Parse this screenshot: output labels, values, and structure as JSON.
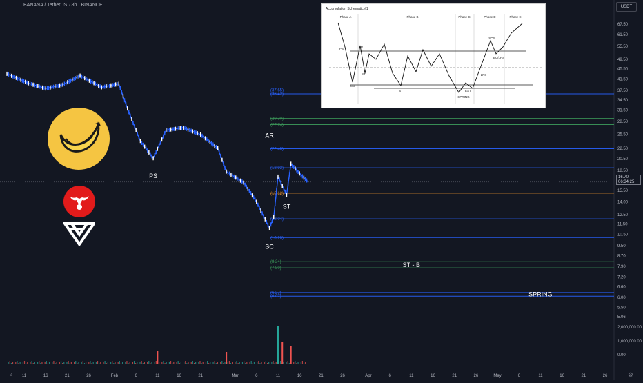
{
  "header": {
    "pair": "BANANA / TetherUS · 8h · BINANCE",
    "currency": "USDT"
  },
  "price_tag": {
    "price": "16.70",
    "countdown": "06:34:25"
  },
  "footer": {
    "timezone_label": "Z"
  },
  "colors": {
    "background": "#131722",
    "up": "#2962ff",
    "down": "#ffffff",
    "fib_blue": "#2962ff",
    "fib_green": "#3d9a5b",
    "fib_orange": "#e8912d",
    "vol_up": "#26a69a",
    "vol_down": "#ef5350"
  },
  "logos": {
    "banana": "banana-logo-icon",
    "bull": "bull-logo-icon",
    "w": "w-logo-icon"
  },
  "schematic": {
    "title": "Accumulation Schematic #1",
    "phases": [
      "Phase A",
      "Phase B",
      "Phase C",
      "Phase D",
      "Phase E"
    ],
    "labels": [
      "PS",
      "AR",
      "SC",
      "ST",
      "ST",
      "SPRING",
      "TEST",
      "LPS",
      "SOS",
      "BU/LPS"
    ]
  },
  "chart_data": {
    "type": "candlestick",
    "title": "BANANA / TetherUS · 8h · BINANCE",
    "y_axis_label": "USDT",
    "y_scale": "log",
    "y_ticks": [
      "67.50",
      "61.50",
      "55.50",
      "49.50",
      "45.50",
      "41.50",
      "37.50",
      "34.50",
      "31.50",
      "28.50",
      "25.50",
      "22.50",
      "20.50",
      "18.50",
      "16.50",
      "15.50",
      "14.00",
      "12.50",
      "11.50",
      "10.50",
      "9.50",
      "8.70",
      "7.90",
      "7.20",
      "6.60",
      "6.00",
      "5.50",
      "5.06"
    ],
    "volume_ticks": [
      "2,000,000.00",
      "1,000,000.00",
      "0.00"
    ],
    "x_ticks": [
      "11",
      "16",
      "21",
      "26",
      "Feb",
      "6",
      "11",
      "16",
      "21",
      "Mar",
      "6",
      "11",
      "16",
      "21",
      "26",
      "Apr",
      "6",
      "11",
      "16",
      "21",
      "26",
      "May",
      "6",
      "11",
      "16",
      "21",
      "26"
    ],
    "last_price": 16.7,
    "levels": [
      {
        "value": 37.65,
        "label": "(37.65)",
        "color": "blue"
      },
      {
        "value": 36.42,
        "label": "(36.42)",
        "color": "blue"
      },
      {
        "value": 29.3,
        "label": "(29.30)",
        "color": "green"
      },
      {
        "value": 27.74,
        "label": "(27.74)",
        "color": "green"
      },
      {
        "value": 22.4,
        "label": "(22.40)",
        "color": "blue"
      },
      {
        "value": 18.93,
        "label": "(18.93)",
        "color": "blue"
      },
      {
        "value": 15.12,
        "label": "(15.12)",
        "color": "orange"
      },
      {
        "value": 12.04,
        "label": "(12.04)",
        "color": "blue"
      },
      {
        "value": 10.2,
        "label": "(10.20)",
        "color": "blue"
      },
      {
        "value": 8.24,
        "label": "(8.24)",
        "color": "green"
      },
      {
        "value": 7.8,
        "label": "(7.80)",
        "color": "green"
      },
      {
        "value": 6.27,
        "label": "(6.27)",
        "color": "blue"
      },
      {
        "value": 6.07,
        "label": "(6.07)",
        "color": "blue"
      }
    ],
    "annotations": [
      {
        "text": "PS",
        "date": "Feb 10",
        "price": 17.6
      },
      {
        "text": "AR",
        "date": "Mar 9",
        "price": 25.2
      },
      {
        "text": "ST",
        "date": "Mar 13",
        "price": 13.4
      },
      {
        "text": "SC",
        "date": "Mar 9",
        "price": 9.4
      },
      {
        "text": "ST - B",
        "date": "Apr 11",
        "price": 8.0
      },
      {
        "text": "SPRING",
        "date": "May 11",
        "price": 6.17
      }
    ],
    "price_path": [
      {
        "date": "Jan 7",
        "price": 43.5
      },
      {
        "date": "Jan 12",
        "price": 40.0
      },
      {
        "date": "Jan 16",
        "price": 38.2
      },
      {
        "date": "Jan 20",
        "price": 39.5
      },
      {
        "date": "Jan 24",
        "price": 42.8
      },
      {
        "date": "Jan 29",
        "price": 38.6
      },
      {
        "date": "Feb 2",
        "price": 39.8
      },
      {
        "date": "Feb 4",
        "price": 32.0
      },
      {
        "date": "Feb 7",
        "price": 24.0
      },
      {
        "date": "Feb 10",
        "price": 20.6
      },
      {
        "date": "Feb 13",
        "price": 26.4
      },
      {
        "date": "Feb 17",
        "price": 27.0
      },
      {
        "date": "Feb 21",
        "price": 25.4
      },
      {
        "date": "Feb 25",
        "price": 22.5
      },
      {
        "date": "Feb 27",
        "price": 18.3
      },
      {
        "date": "Mar 3",
        "price": 16.6
      },
      {
        "date": "Mar 6",
        "price": 14.0
      },
      {
        "date": "Mar 9",
        "price": 11.1
      },
      {
        "date": "Mar 10",
        "price": 12.2
      },
      {
        "date": "Mar 11",
        "price": 17.5
      },
      {
        "date": "Mar 13",
        "price": 14.9
      },
      {
        "date": "Mar 14",
        "price": 19.6
      },
      {
        "date": "Mar 16",
        "price": 18.0
      },
      {
        "date": "Mar 18",
        "price": 16.7
      }
    ],
    "volume_path": [
      {
        "date": "Mar 11",
        "volume": 2100000
      },
      {
        "date": "Mar 12",
        "volume": 900000
      },
      {
        "date": "Mar 14",
        "volume": 600000
      },
      {
        "date": "Feb 11",
        "volume": 250000
      },
      {
        "date": "Feb 27",
        "volume": 200000
      }
    ]
  }
}
